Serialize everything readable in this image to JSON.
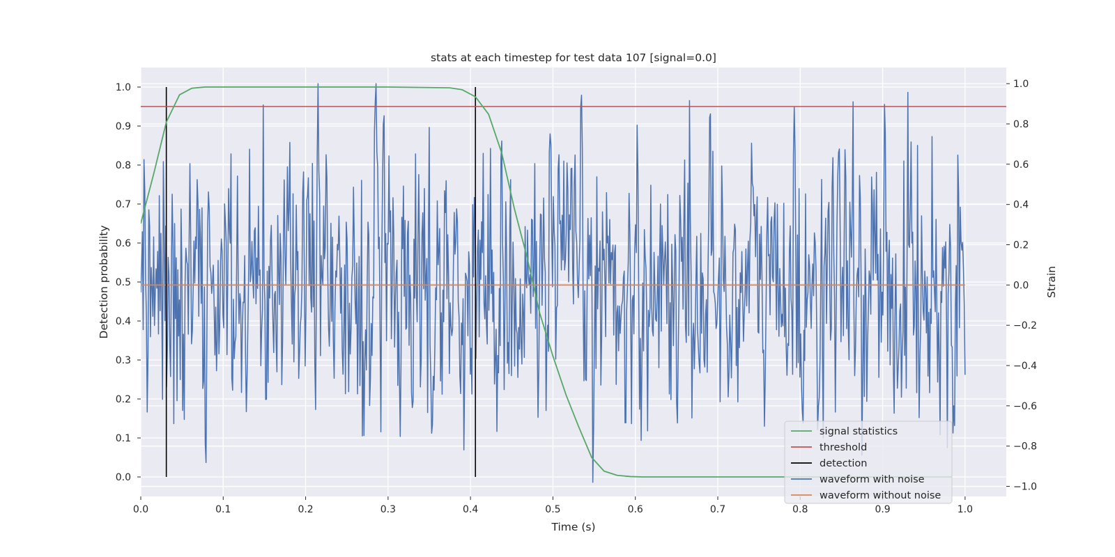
{
  "chart_data": {
    "type": "line",
    "title": "stats at each timestep for test data 107 [signal=0.0]",
    "xlabel": "Time (s)",
    "ylabel_left": "Detection probability",
    "ylabel_right": "Strain",
    "xlim": [
      0.0,
      1.05
    ],
    "ylim_left": [
      -0.05,
      1.05
    ],
    "ylim_right": [
      -1.05,
      1.08
    ],
    "xticks": [
      "0.0",
      "0.1",
      "0.2",
      "0.3",
      "0.4",
      "0.5",
      "0.6",
      "0.7",
      "0.8",
      "0.9",
      "1.0"
    ],
    "yticks_left": [
      "0.0",
      "0.1",
      "0.2",
      "0.3",
      "0.4",
      "0.5",
      "0.6",
      "0.7",
      "0.8",
      "0.9",
      "1.0"
    ],
    "yticks_right": [
      "−1.0",
      "−0.8",
      "−0.6",
      "−0.4",
      "−0.2",
      "0.0",
      "0.2",
      "0.4",
      "0.6",
      "0.8",
      "1.0"
    ],
    "grid": true,
    "legend_position": "lower-right",
    "colors": {
      "signal_statistics": "#55a868",
      "threshold": "#c44e52",
      "detection": "#000000",
      "waveform_with_noise": "#4c72b0",
      "waveform_without_noise": "#dd8452",
      "background": "#eaeaf2",
      "grid": "#ffffff"
    },
    "signal_statistics": {
      "name": "signal statistics",
      "x": [
        0.0,
        0.016,
        0.031,
        0.047,
        0.062,
        0.078,
        0.094,
        0.2,
        0.3,
        0.375,
        0.39,
        0.406,
        0.422,
        0.438,
        0.453,
        0.469,
        0.484,
        0.5,
        0.516,
        0.531,
        0.547,
        0.562,
        0.578,
        0.594,
        0.609,
        0.7,
        0.8,
        0.9,
        0.984
      ],
      "values": [
        0.65,
        0.78,
        0.91,
        0.98,
        0.997,
        1.0,
        1.0,
        1.0,
        1.0,
        0.998,
        0.993,
        0.975,
        0.93,
        0.83,
        0.69,
        0.56,
        0.42,
        0.31,
        0.21,
        0.13,
        0.05,
        0.015,
        0.004,
        0.001,
        0.0,
        0.0,
        0.0,
        0.0,
        0.0
      ]
    },
    "threshold": {
      "name": "threshold",
      "value": 0.95
    },
    "detection": {
      "name": "detection",
      "x": [
        0.031,
        0.406
      ],
      "y_range": [
        0.0,
        1.0
      ]
    },
    "waveform_with_noise": {
      "name": "waveform with noise",
      "x_range": [
        0.0,
        1.0
      ],
      "n_points": 1024,
      "approx_std": 0.32,
      "approx_range": [
        -0.99,
        1.0
      ]
    },
    "waveform_without_noise": {
      "name": "waveform without noise",
      "x": [
        0.0,
        1.0
      ],
      "values": [
        0.0,
        0.0
      ]
    },
    "legend": [
      "signal statistics",
      "threshold",
      "detection",
      "waveform with noise",
      "waveform without noise"
    ]
  }
}
